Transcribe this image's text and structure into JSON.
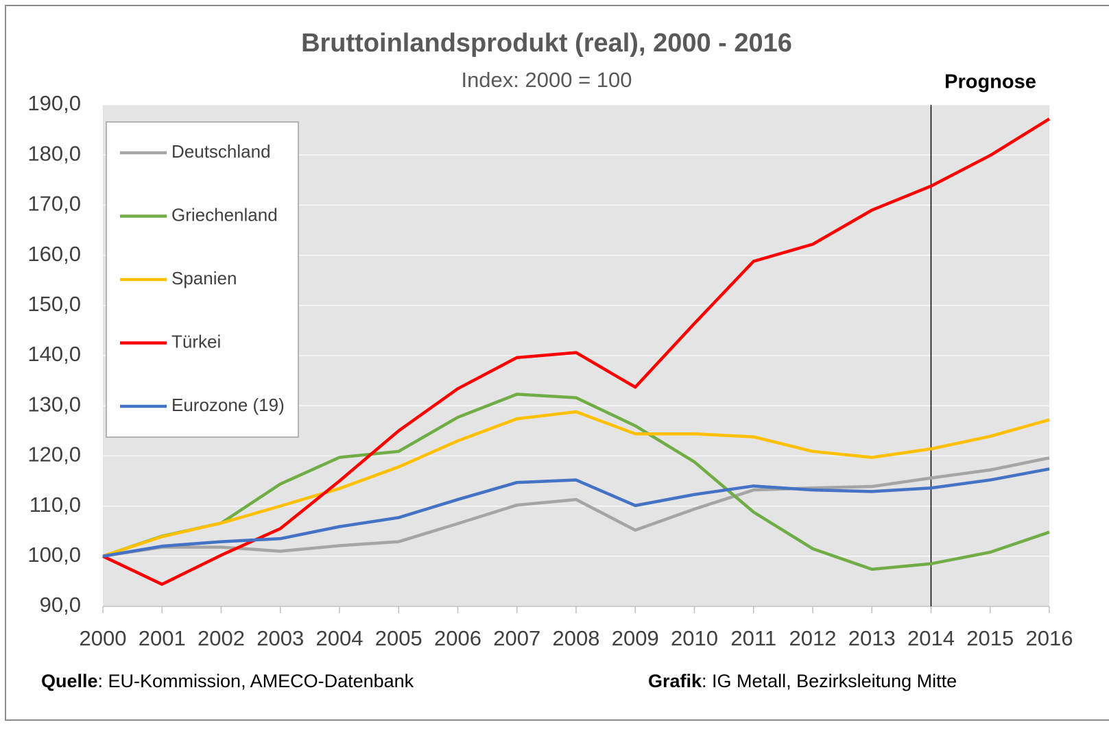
{
  "chart_data": {
    "type": "line",
    "title": "Bruttoinlandsprodukt (real), 2000 - 2016",
    "subtitle": "Index: 2000 = 100",
    "x": [
      2000,
      2001,
      2002,
      2003,
      2004,
      2005,
      2006,
      2007,
      2008,
      2009,
      2010,
      2011,
      2012,
      2013,
      2014,
      2015,
      2016
    ],
    "xlim": [
      2000,
      2016
    ],
    "xticks": [
      2000,
      2001,
      2002,
      2003,
      2004,
      2005,
      2006,
      2007,
      2008,
      2009,
      2010,
      2011,
      2012,
      2013,
      2014,
      2015,
      2016
    ],
    "ylim": [
      90,
      190
    ],
    "yticks": [
      {
        "value": 90,
        "label": "90,0"
      },
      {
        "value": 100,
        "label": "100,0"
      },
      {
        "value": 110,
        "label": "110,0"
      },
      {
        "value": 120,
        "label": "120,0"
      },
      {
        "value": 130,
        "label": "130,0"
      },
      {
        "value": 140,
        "label": "140,0"
      },
      {
        "value": 150,
        "label": "150,0"
      },
      {
        "value": 160,
        "label": "160,0"
      },
      {
        "value": 170,
        "label": "170,0"
      },
      {
        "value": 180,
        "label": "180,0"
      },
      {
        "value": 190,
        "label": "190,0"
      }
    ],
    "grid": true,
    "legend": "upper left",
    "forecast_start": 2014,
    "forecast_label": "Prognose",
    "series": [
      {
        "name": "Deutschland",
        "color": "#a5a5a5",
        "values": [
          100,
          101.8,
          101.8,
          101.0,
          102.1,
          102.9,
          106.5,
          110.2,
          111.3,
          105.2,
          109.4,
          113.2,
          113.6,
          113.9,
          115.6,
          117.2,
          119.6
        ]
      },
      {
        "name": "Griechenland",
        "color": "#70ad47",
        "values": [
          100,
          104.0,
          106.6,
          114.4,
          119.7,
          120.9,
          127.7,
          132.3,
          131.6,
          126.0,
          118.8,
          108.8,
          101.5,
          97.4,
          98.5,
          100.8,
          104.8
        ]
      },
      {
        "name": "Spanien",
        "color": "#ffc000",
        "values": [
          100,
          103.9,
          106.6,
          110.0,
          113.5,
          117.8,
          123.0,
          127.4,
          128.8,
          124.4,
          124.4,
          123.8,
          120.9,
          119.7,
          121.4,
          123.9,
          127.2
        ]
      },
      {
        "name": "Türkei",
        "color": "#ff0000",
        "values": [
          100,
          94.4,
          100.2,
          105.5,
          115.0,
          125.0,
          133.4,
          139.6,
          140.6,
          133.7,
          146.4,
          158.8,
          162.2,
          169.0,
          173.8,
          179.9,
          187.2
        ]
      },
      {
        "name": "Eurozone (19)",
        "color": "#4472c4",
        "values": [
          100,
          102.0,
          102.9,
          103.5,
          105.9,
          107.7,
          111.3,
          114.7,
          115.2,
          110.1,
          112.3,
          114.0,
          113.2,
          112.9,
          113.6,
          115.2,
          117.4
        ]
      }
    ],
    "source": {
      "label": "Quelle",
      "text": ": EU-Kommission, AMECO-Datenbank"
    },
    "credit": {
      "label": "Grafik",
      "text": ": IG Metall, Bezirksleitung Mitte"
    }
  }
}
